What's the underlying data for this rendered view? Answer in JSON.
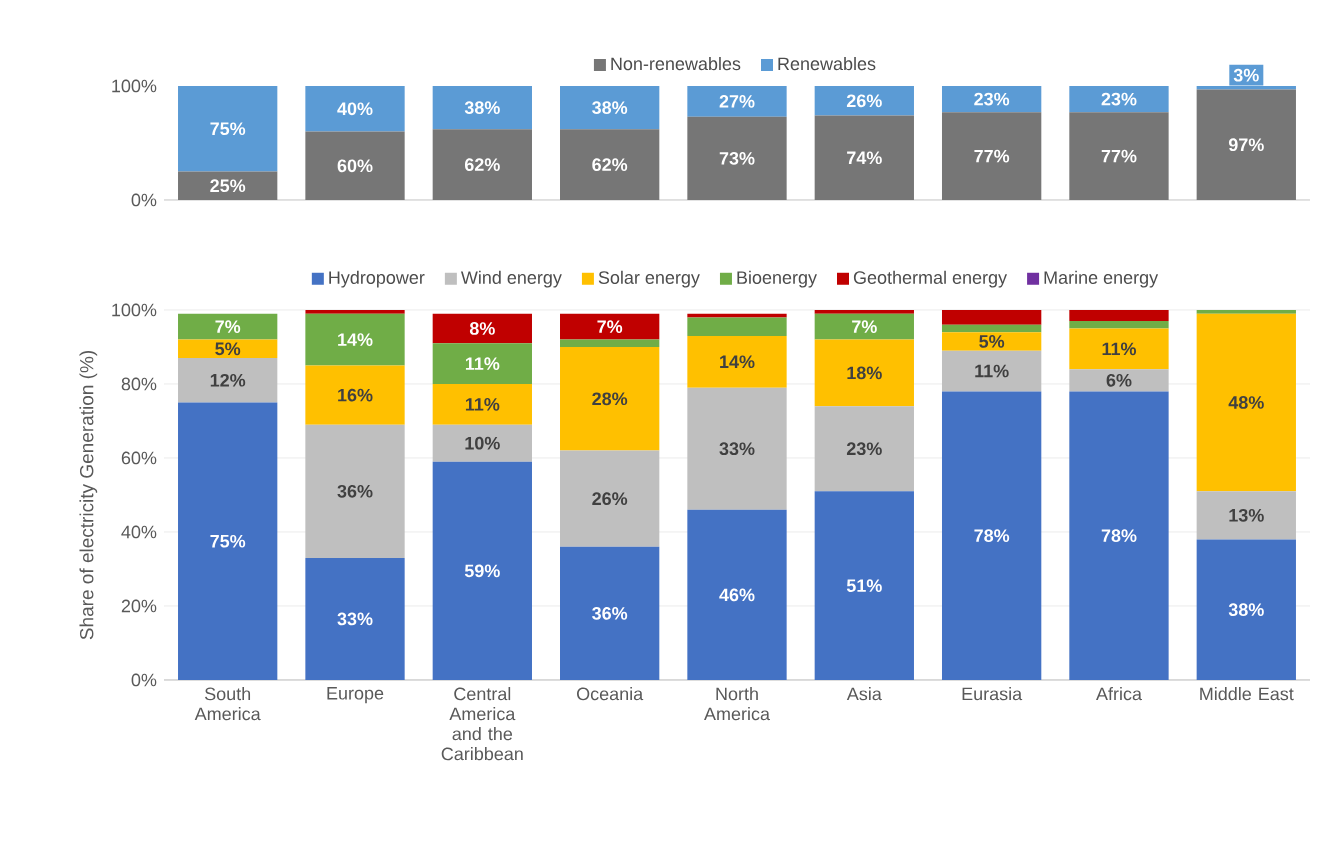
{
  "chart_data": [
    {
      "type": "bar",
      "stacked": true,
      "categories": [
        null,
        null,
        null,
        null,
        null,
        null,
        null,
        null,
        null
      ],
      "tick_labels": "y",
      "ylim": [
        0,
        100
      ],
      "yticks": [
        {
          "value": 0,
          "label": "0%"
        },
        {
          "value": 100,
          "label": "100%"
        }
      ],
      "legend": "top",
      "grid": false,
      "series": [
        {
          "name": "Non-renewables",
          "color": "#767676",
          "values": [
            25,
            60,
            62,
            62,
            73,
            74,
            77,
            77,
            97
          ],
          "value_labels": [
            "25%",
            "60%",
            "62%",
            "62%",
            "73%",
            "74%",
            "77%",
            "77%",
            "97%"
          ]
        },
        {
          "name": "Renewables",
          "color": "#5b9bd5",
          "values": [
            75,
            40,
            38,
            38,
            27,
            26,
            23,
            23,
            3
          ],
          "value_labels": [
            "75%",
            "40%",
            "38%",
            "38%",
            "27%",
            "26%",
            "23%",
            "23%",
            "3%"
          ]
        }
      ]
    },
    {
      "type": "bar",
      "stacked": true,
      "categories": [
        "South America",
        "Europe",
        "Central America and the Caribbean",
        "Oceania",
        "North America",
        "Asia",
        "Eurasia",
        "Africa",
        "Middle East"
      ],
      "ylabel": "Share of electricity Generation (%)",
      "ylim": [
        0,
        100
      ],
      "yticks": [
        {
          "value": 0,
          "label": "0%"
        },
        {
          "value": 20,
          "label": "20%"
        },
        {
          "value": 40,
          "label": "40%"
        },
        {
          "value": 60,
          "label": "60%"
        },
        {
          "value": 80,
          "label": "80%"
        },
        {
          "value": 100,
          "label": "100%"
        }
      ],
      "legend": "top",
      "grid": "y",
      "series": [
        {
          "name": "Hydropower",
          "color": "#4472c4",
          "values": [
            75,
            33,
            59,
            36,
            46,
            51,
            78,
            78,
            38
          ],
          "value_labels": [
            "75%",
            "33%",
            "59%",
            "36%",
            "46%",
            "51%",
            "78%",
            "78%",
            "38%"
          ]
        },
        {
          "name": "Wind energy",
          "color": "#bfbfbf",
          "values": [
            12,
            36,
            10,
            26,
            33,
            23,
            11,
            6,
            13
          ],
          "value_labels": [
            "12%",
            "36%",
            "10%",
            "26%",
            "33%",
            "23%",
            "11%",
            "6%",
            "13%"
          ]
        },
        {
          "name": "Solar energy",
          "color": "#ffc000",
          "values": [
            5,
            16,
            11,
            28,
            14,
            18,
            5,
            11,
            48
          ],
          "value_labels": [
            "5%",
            "16%",
            "11%",
            "28%",
            "14%",
            "18%",
            "5%",
            "11%",
            "48%"
          ]
        },
        {
          "name": "Bioenergy",
          "color": "#70ad47",
          "values": [
            7,
            14,
            11,
            2,
            5,
            7,
            2,
            2,
            1
          ],
          "value_labels": [
            "7%",
            "14%",
            "11%",
            null,
            null,
            "7%",
            null,
            null,
            null
          ]
        },
        {
          "name": "Geothermal energy",
          "color": "#c00000",
          "values": [
            0,
            1,
            8,
            7,
            1,
            1,
            4,
            3,
            0
          ],
          "value_labels": [
            null,
            null,
            "8%",
            "7%",
            null,
            null,
            null,
            null,
            null
          ]
        },
        {
          "name": "Marine energy",
          "color": "#7030a0",
          "values": [
            0,
            0,
            0,
            0,
            0,
            0,
            0,
            0,
            0
          ],
          "value_labels": [
            null,
            null,
            null,
            null,
            null,
            null,
            null,
            null,
            null
          ]
        }
      ]
    }
  ]
}
